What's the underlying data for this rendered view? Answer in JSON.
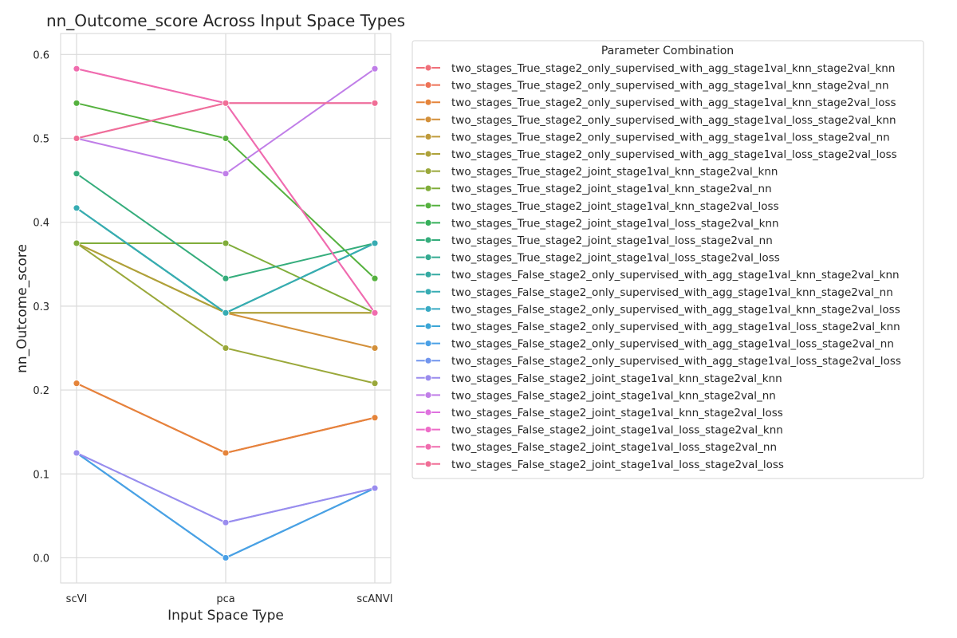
{
  "chart_data": {
    "type": "line",
    "title": "nn_Outcome_score Across Input Space Types",
    "xlabel": "Input Space Type",
    "ylabel": "nn_Outcome_score",
    "categories": [
      "scVI",
      "pca",
      "scANVI"
    ],
    "ylim": [
      -0.03,
      0.625
    ],
    "yticks": [
      "0.0",
      "0.1",
      "0.2",
      "0.3",
      "0.4",
      "0.5",
      "0.6"
    ],
    "grid": true,
    "legend": {
      "title": "Parameter Combination",
      "placement": "outside-right"
    },
    "series": [
      {
        "name": "two_stages_True_stage2_only_supervised_with_agg_stage1val_knn_stage2val_knn",
        "color": "#f0707a",
        "values": [
          0.208,
          0.125,
          0.167
        ]
      },
      {
        "name": "two_stages_True_stage2_only_supervised_with_agg_stage1val_knn_stage2val_nn",
        "color": "#ee7256",
        "values": [
          0.208,
          0.125,
          0.167
        ]
      },
      {
        "name": "two_stages_True_stage2_only_supervised_with_agg_stage1val_knn_stage2val_loss",
        "color": "#e5843a",
        "values": [
          0.208,
          0.125,
          0.167
        ]
      },
      {
        "name": "two_stages_True_stage2_only_supervised_with_agg_stage1val_loss_stage2val_knn",
        "color": "#d3903a",
        "values": [
          0.375,
          0.292,
          0.25
        ]
      },
      {
        "name": "two_stages_True_stage2_only_supervised_with_agg_stage1val_loss_stage2val_nn",
        "color": "#bf9a3a",
        "values": [
          0.375,
          0.292,
          0.292
        ]
      },
      {
        "name": "two_stages_True_stage2_only_supervised_with_agg_stage1val_loss_stage2val_loss",
        "color": "#aea23a",
        "values": [
          0.375,
          0.292,
          0.292
        ]
      },
      {
        "name": "two_stages_True_stage2_joint_stage1val_knn_stage2val_knn",
        "color": "#9aa83a",
        "values": [
          0.375,
          0.25,
          0.208
        ]
      },
      {
        "name": "two_stages_True_stage2_joint_stage1val_knn_stage2val_nn",
        "color": "#80ad3a",
        "values": [
          0.375,
          0.375,
          0.292
        ]
      },
      {
        "name": "two_stages_True_stage2_joint_stage1val_knn_stage2val_loss",
        "color": "#55b13e",
        "values": [
          0.542,
          0.5,
          0.333
        ]
      },
      {
        "name": "two_stages_True_stage2_joint_stage1val_loss_stage2val_knn",
        "color": "#36b05a",
        "values": [
          0.417,
          0.292,
          0.375
        ]
      },
      {
        "name": "two_stages_True_stage2_joint_stage1val_loss_stage2val_nn",
        "color": "#35ad7c",
        "values": [
          0.458,
          0.333,
          0.375
        ]
      },
      {
        "name": "two_stages_True_stage2_joint_stage1val_loss_stage2val_loss",
        "color": "#34aa91",
        "values": [
          0.417,
          0.292,
          0.375
        ]
      },
      {
        "name": "two_stages_False_stage2_only_supervised_with_agg_stage1val_knn_stage2val_knn",
        "color": "#35aaa2",
        "values": [
          0.417,
          0.292,
          0.375
        ]
      },
      {
        "name": "two_stages_False_stage2_only_supervised_with_agg_stage1val_knn_stage2val_nn",
        "color": "#37acb3",
        "values": [
          0.417,
          0.292,
          0.375
        ]
      },
      {
        "name": "two_stages_False_stage2_only_supervised_with_agg_stage1val_knn_stage2val_loss",
        "color": "#38aac4",
        "values": [
          0.125,
          0.0,
          0.083
        ]
      },
      {
        "name": "two_stages_False_stage2_only_supervised_with_agg_stage1val_loss_stage2val_knn",
        "color": "#3ba6d6",
        "values": [
          0.125,
          0.0,
          0.083
        ]
      },
      {
        "name": "two_stages_False_stage2_only_supervised_with_agg_stage1val_loss_stage2val_nn",
        "color": "#4aa0e6",
        "values": [
          0.125,
          0.0,
          0.083
        ]
      },
      {
        "name": "two_stages_False_stage2_only_supervised_with_agg_stage1val_loss_stage2val_loss",
        "color": "#7195ee",
        "values": [
          0.125,
          0.042,
          0.083
        ]
      },
      {
        "name": "two_stages_False_stage2_joint_stage1val_knn_stage2val_knn",
        "color": "#9a8cee",
        "values": [
          0.125,
          0.042,
          0.083
        ]
      },
      {
        "name": "two_stages_False_stage2_joint_stage1val_knn_stage2val_nn",
        "color": "#c07ee8",
        "values": [
          0.5,
          0.458,
          0.583
        ]
      },
      {
        "name": "two_stages_False_stage2_joint_stage1val_knn_stage2val_loss",
        "color": "#df72df",
        "values": [
          0.5,
          0.542,
          0.542
        ]
      },
      {
        "name": "two_stages_False_stage2_joint_stage1val_loss_stage2val_knn",
        "color": "#ee6cc8",
        "values": [
          0.583,
          0.542,
          0.292
        ]
      },
      {
        "name": "two_stages_False_stage2_joint_stage1val_loss_stage2val_nn",
        "color": "#f06cae",
        "values": [
          0.583,
          0.542,
          0.292
        ]
      },
      {
        "name": "two_stages_False_stage2_joint_stage1val_loss_stage2val_loss",
        "color": "#f06e96",
        "values": [
          0.5,
          0.542,
          0.542
        ]
      }
    ]
  }
}
